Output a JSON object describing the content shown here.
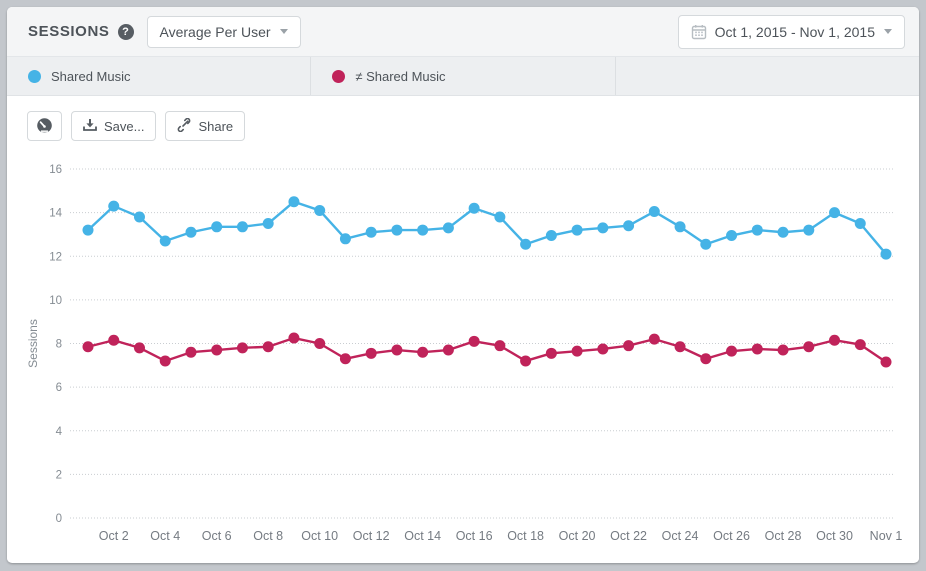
{
  "header": {
    "title": "SESSIONS",
    "help_glyph": "?",
    "metric_dropdown": {
      "value": "Average Per User"
    },
    "date_range": {
      "value": "Oct 1, 2015 - Nov 1, 2015"
    }
  },
  "legend": {
    "tabs": [
      {
        "label": "Shared Music",
        "color": "#45b3e6"
      },
      {
        "label": "≠ Shared Music",
        "color": "#c0235a"
      }
    ]
  },
  "toolbar": {
    "save_label": "Save...",
    "share_label": "Share"
  },
  "chart_data": {
    "type": "line",
    "title": "",
    "xlabel": "",
    "ylabel": "Sessions",
    "ylim": [
      0,
      16
    ],
    "ytick_step": 2,
    "grid": "horizontal-dotted",
    "legend_position": "top-tabs",
    "categories": [
      "Oct 1",
      "Oct 2",
      "Oct 3",
      "Oct 4",
      "Oct 5",
      "Oct 6",
      "Oct 7",
      "Oct 8",
      "Oct 9",
      "Oct 10",
      "Oct 11",
      "Oct 12",
      "Oct 13",
      "Oct 14",
      "Oct 15",
      "Oct 16",
      "Oct 17",
      "Oct 18",
      "Oct 19",
      "Oct 20",
      "Oct 21",
      "Oct 22",
      "Oct 23",
      "Oct 24",
      "Oct 25",
      "Oct 26",
      "Oct 27",
      "Oct 28",
      "Oct 29",
      "Oct 30",
      "Oct 31",
      "Nov 1"
    ],
    "x_tick_labels_shown": [
      "Oct 2",
      "Oct 4",
      "Oct 6",
      "Oct 8",
      "Oct 10",
      "Oct 12",
      "Oct 14",
      "Oct 16",
      "Oct 18",
      "Oct 20",
      "Oct 22",
      "Oct 24",
      "Oct 26",
      "Oct 28",
      "Oct 30",
      "Nov 1"
    ],
    "series": [
      {
        "name": "Shared Music",
        "color": "#45b3e6",
        "values": [
          13.2,
          14.3,
          13.8,
          12.7,
          13.1,
          13.35,
          13.35,
          13.5,
          14.5,
          14.1,
          12.8,
          13.1,
          13.2,
          13.2,
          13.3,
          14.2,
          13.8,
          12.55,
          12.95,
          13.2,
          13.3,
          13.4,
          14.05,
          13.35,
          12.55,
          12.95,
          13.2,
          13.1,
          13.2,
          14.0,
          13.5,
          12.1
        ]
      },
      {
        "name": "≠ Shared Music",
        "color": "#c0235a",
        "values": [
          7.85,
          8.15,
          7.8,
          7.2,
          7.6,
          7.7,
          7.8,
          7.85,
          8.25,
          8.0,
          7.3,
          7.55,
          7.7,
          7.6,
          7.7,
          8.1,
          7.9,
          7.2,
          7.55,
          7.65,
          7.75,
          7.9,
          8.2,
          7.85,
          7.3,
          7.65,
          7.75,
          7.7,
          7.85,
          8.15,
          7.95,
          7.15
        ]
      }
    ],
    "axis_text_color": "#858c93",
    "grid_color": "#c9cdd1"
  }
}
